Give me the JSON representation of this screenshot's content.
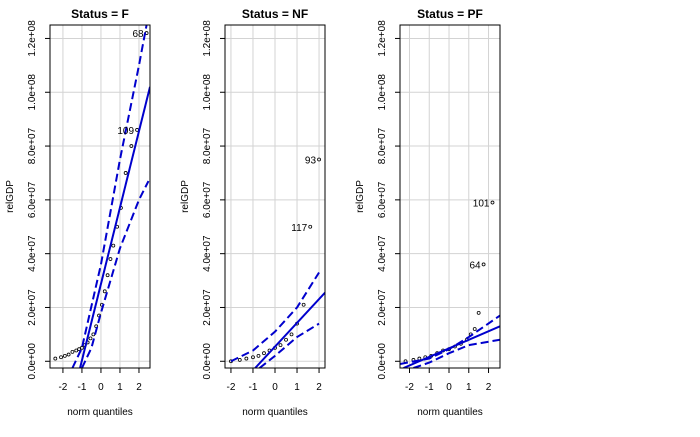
{
  "chart_data": [
    {
      "type": "scatter",
      "title": "Status = F",
      "x_label": "norm quantiles",
      "y_label": "relGDP",
      "xlim": [
        -2.68,
        2.58
      ],
      "ylim": [
        -2500000,
        125000000
      ],
      "xticks": [
        -2,
        -1,
        0,
        1,
        2
      ],
      "yticks": [
        {
          "value": 0,
          "label": "0.0e+00"
        },
        {
          "value": 20000000,
          "label": "2.0e+07"
        },
        {
          "value": 40000000,
          "label": "4.0e+07"
        },
        {
          "value": 60000000,
          "label": "6.0e+07"
        },
        {
          "value": 80000000,
          "label": "8.0e+07"
        },
        {
          "value": 100000000,
          "label": "1.0e+08"
        },
        {
          "value": 120000000,
          "label": "1.2e+08"
        }
      ],
      "grid": true,
      "series": [
        {
          "style": "points",
          "color": "#000000",
          "x": [
            -2.4,
            -2.1,
            -1.9,
            -1.7,
            -1.5,
            -1.3,
            -1.15,
            -1.0,
            -0.85,
            -0.7,
            -0.55,
            -0.4,
            -0.25,
            -0.1,
            0.05,
            0.2,
            0.35,
            0.5,
            0.65,
            0.85,
            1.05,
            1.3,
            1.6,
            1.9,
            2.4
          ],
          "values": [
            1000000,
            1500000,
            2000000,
            2500000,
            3500000,
            4000000,
            4500000,
            5000000,
            6000000,
            7000000,
            8500000,
            10000000,
            13000000,
            17000000,
            21000000,
            26000000,
            32000000,
            38000000,
            43000000,
            50000000,
            57000000,
            70000000,
            80000000,
            86000000,
            122000000
          ]
        },
        {
          "style": "solid",
          "color": "#0000cd",
          "x": [
            -1.1,
            2.58
          ],
          "values": [
            -2500000,
            102000000
          ]
        },
        {
          "style": "dashed",
          "color": "#0000cd",
          "x": [
            -1.5,
            -1,
            0,
            1,
            2,
            2.4
          ],
          "values": [
            -2500000,
            5000000,
            36000000,
            75000000,
            110000000,
            125000000
          ]
        },
        {
          "style": "dashed",
          "color": "#0000cd",
          "x": [
            -1.0,
            -0.5,
            0,
            1,
            2,
            2.5
          ],
          "values": [
            -2500000,
            5000000,
            18000000,
            42000000,
            60000000,
            67000000
          ]
        }
      ],
      "annotations": [
        {
          "text": "68",
          "x": 2.4,
          "y": 122000000
        },
        {
          "text": "109",
          "x": 1.9,
          "y": 86000000
        }
      ]
    },
    {
      "type": "scatter",
      "title": "Status = NF",
      "x_label": "norm quantiles",
      "y_label": "relGDP",
      "xlim": [
        -2.27,
        2.27
      ],
      "ylim": [
        -2500000,
        125000000
      ],
      "xticks": [
        -2,
        -1,
        0,
        1,
        2
      ],
      "yticks": [
        {
          "value": 0,
          "label": "0.0e+00"
        },
        {
          "value": 20000000,
          "label": "2.0e+07"
        },
        {
          "value": 40000000,
          "label": "4.0e+07"
        },
        {
          "value": 60000000,
          "label": "6.0e+07"
        },
        {
          "value": 80000000,
          "label": "8.0e+07"
        },
        {
          "value": 100000000,
          "label": "1.0e+08"
        },
        {
          "value": 120000000,
          "label": "1.2e+08"
        }
      ],
      "grid": true,
      "series": [
        {
          "style": "points",
          "color": "#000000",
          "x": [
            -2.0,
            -1.6,
            -1.3,
            -1.0,
            -0.75,
            -0.5,
            -0.25,
            0,
            0.25,
            0.5,
            0.75,
            1.0,
            1.3,
            1.6,
            2.0
          ],
          "values": [
            0,
            500000,
            1000000,
            1500000,
            2000000,
            3000000,
            4000000,
            5000000,
            6000000,
            8000000,
            10000000,
            14000000,
            21000000,
            50000000,
            75000000
          ]
        },
        {
          "style": "solid",
          "color": "#0000cd",
          "x": [
            -0.9,
            2.27
          ],
          "values": [
            -2500000,
            25500000
          ]
        },
        {
          "style": "dashed",
          "color": "#0000cd",
          "x": [
            -2.0,
            -1,
            0,
            1,
            2
          ],
          "values": [
            0,
            4000000,
            11000000,
            20000000,
            33000000
          ]
        },
        {
          "style": "dashed",
          "color": "#0000cd",
          "x": [
            -0.7,
            0,
            1,
            2
          ],
          "values": [
            -2500000,
            2000000,
            9000000,
            14000000
          ]
        }
      ],
      "annotations": [
        {
          "text": "117",
          "x": 1.6,
          "y": 50000000
        },
        {
          "text": "93",
          "x": 2.0,
          "y": 75000000
        }
      ]
    },
    {
      "type": "scatter",
      "title": "Status = PF",
      "x_label": "norm quantiles",
      "y_label": "relGDP",
      "xlim": [
        -2.48,
        2.58
      ],
      "ylim": [
        -2500000,
        125000000
      ],
      "xticks": [
        -2,
        -1,
        0,
        1,
        2
      ],
      "yticks": [
        {
          "value": 0,
          "label": "0.0e+00"
        },
        {
          "value": 20000000,
          "label": "2.0e+07"
        },
        {
          "value": 40000000,
          "label": "4.0e+07"
        },
        {
          "value": 60000000,
          "label": "6.0e+07"
        },
        {
          "value": 80000000,
          "label": "8.0e+07"
        },
        {
          "value": 100000000,
          "label": "1.0e+08"
        },
        {
          "value": 120000000,
          "label": "1.2e+08"
        }
      ],
      "grid": true,
      "series": [
        {
          "style": "points",
          "color": "#000000",
          "x": [
            -2.2,
            -1.8,
            -1.5,
            -1.2,
            -0.9,
            -0.6,
            -0.3,
            0,
            0.3,
            0.6,
            0.9,
            1.1,
            1.3,
            1.5,
            1.75,
            2.2
          ],
          "values": [
            0,
            500000,
            1000000,
            1500000,
            2000000,
            3000000,
            4000000,
            4500000,
            5500000,
            6500000,
            8000000,
            10000000,
            12000000,
            18000000,
            36000000,
            59000000
          ]
        },
        {
          "style": "solid",
          "color": "#0000cd",
          "x": [
            -2.3,
            2.58
          ],
          "values": [
            -2500000,
            13000000
          ]
        },
        {
          "style": "dashed",
          "color": "#0000cd",
          "x": [
            -2.48,
            -1,
            0,
            1,
            2.58
          ],
          "values": [
            -1000000,
            1000000,
            4500000,
            9000000,
            17000000
          ]
        },
        {
          "style": "dashed",
          "color": "#0000cd",
          "x": [
            -1.8,
            -1,
            0,
            1,
            2.58
          ],
          "values": [
            -2500000,
            -500000,
            3000000,
            6000000,
            8000000
          ]
        }
      ],
      "annotations": [
        {
          "text": "64",
          "x": 1.75,
          "y": 36000000
        },
        {
          "text": "101",
          "x": 2.2,
          "y": 59000000
        }
      ]
    }
  ]
}
